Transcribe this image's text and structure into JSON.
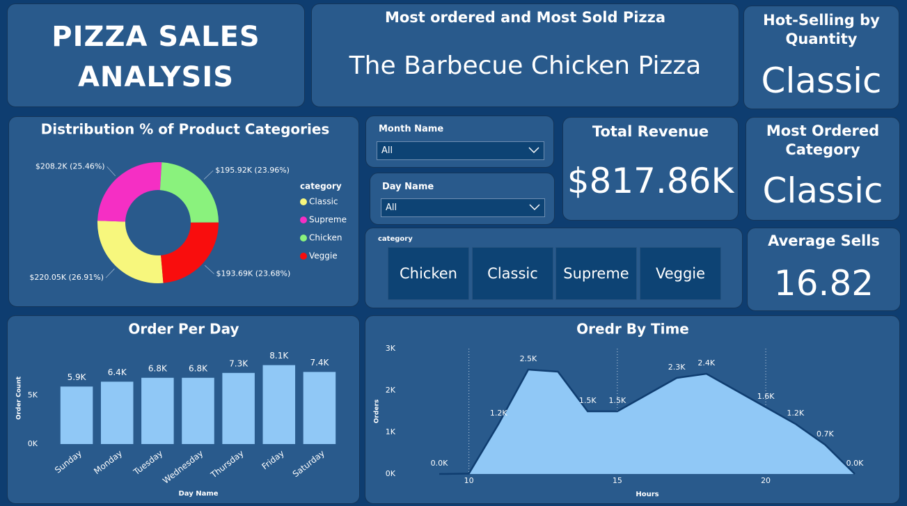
{
  "header": {
    "title": "PIZZA SALES ANALYSIS"
  },
  "cards": [
    {
      "title": "Most ordered and Most Sold Pizza",
      "value": "The Barbecue Chicken Pizza"
    },
    {
      "title": "Hot-Selling by Quantity",
      "value": "Classic"
    },
    {
      "title": "Total Revenue",
      "value": "$817.86K"
    },
    {
      "title": "Most Ordered Category",
      "value": "Classic"
    },
    {
      "title": "Average Sells",
      "value": "16.82"
    }
  ],
  "slicers": [
    {
      "title": "Month Name",
      "value": "All"
    },
    {
      "title": "Day Name",
      "value": "All"
    }
  ],
  "category_slicer": {
    "title": "category",
    "items": [
      "Chicken",
      "Classic",
      "Supreme",
      "Veggie"
    ]
  },
  "chart_data": [
    {
      "type": "pie",
      "title": "Distribution % of Product Categories",
      "legend_title": "category",
      "categories": [
        "Classic",
        "Supreme",
        "Chicken",
        "Veggie"
      ],
      "values": [
        220.05,
        208.2,
        195.92,
        193.69
      ],
      "value_labels": [
        "$220.05K (26.91%)",
        "$208.2K (25.46%)",
        "$195.92K (23.96%)",
        "$193.69K (23.68%)"
      ],
      "colors": [
        "#f7f77d",
        "#f52fc4",
        "#8af27d",
        "#f90d0d"
      ]
    },
    {
      "type": "bar",
      "title": "Order Per Day",
      "x_label": "Day Name",
      "y_label": "Order Count",
      "categories": [
        "Sunday",
        "Monday",
        "Tuesday",
        "Wednesday",
        "Thursday",
        "Friday",
        "Saturday"
      ],
      "values": [
        5900,
        6400,
        6800,
        6800,
        7300,
        8100,
        7400
      ],
      "value_labels": [
        "5.9K",
        "6.4K",
        "6.8K",
        "6.8K",
        "7.3K",
        "8.1K",
        "7.4K"
      ],
      "color": "#90c8f6",
      "ylim": [
        0,
        9400
      ],
      "yticks": [
        {
          "value": 0,
          "label": "0K"
        },
        {
          "value": 5000,
          "label": "5K"
        }
      ]
    },
    {
      "type": "area",
      "title": "Oredr By Time",
      "x_label": "Hours",
      "y_label": "Orders",
      "x": [
        9,
        10,
        11,
        12,
        13,
        14,
        15,
        16,
        17,
        18,
        19,
        20,
        21,
        22,
        23
      ],
      "values": [
        0,
        10,
        1200,
        2500,
        2450,
        1500,
        1500,
        1900,
        2300,
        2400,
        2000,
        1600,
        1200,
        700,
        0
      ],
      "value_labels": [
        "0.0K",
        null,
        "1.2K",
        "2.5K",
        null,
        "1.5K",
        "1.5K",
        null,
        "2.3K",
        "2.4K",
        null,
        "1.6K",
        "1.2K",
        "0.7K",
        "0.0K"
      ],
      "color": "#90c8f6",
      "line_color": "#0f3d70",
      "xlim": [
        9,
        23
      ],
      "xticks": [
        10,
        15,
        20
      ],
      "x_grid": true,
      "ylim": [
        0,
        3000
      ],
      "yticks": [
        {
          "value": 0,
          "label": "0K"
        },
        {
          "value": 1000,
          "label": "1K"
        },
        {
          "value": 2000,
          "label": "2K"
        },
        {
          "value": 3000,
          "label": "3K"
        }
      ]
    }
  ]
}
